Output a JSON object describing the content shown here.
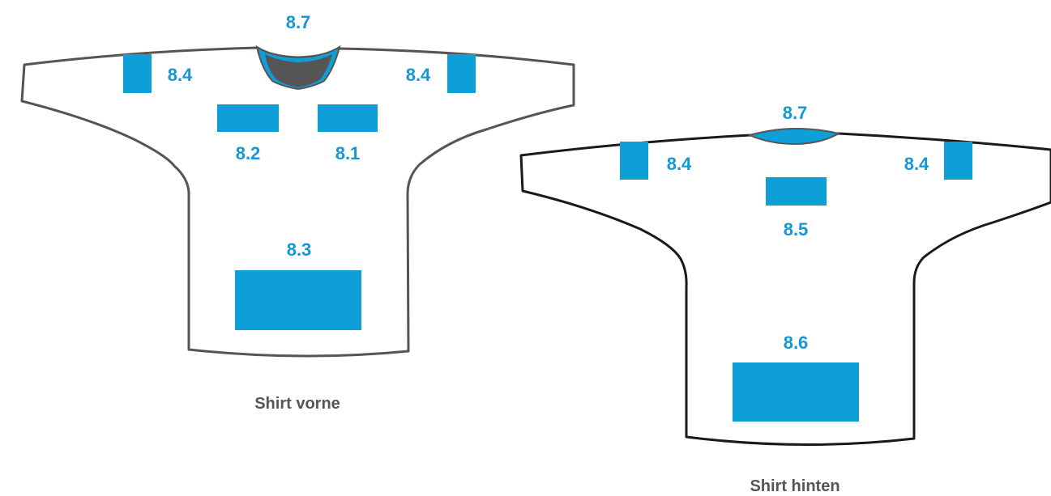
{
  "colors": {
    "zone_fill": "#0f9fd8",
    "label_text": "#1597d3",
    "outline_front": "#555555",
    "outline_back": "#1a1a1a",
    "collar_inner": "#555555",
    "caption_text": "#555555"
  },
  "front": {
    "caption": "Shirt vorne",
    "zones": {
      "collar": "8.7",
      "shoulder_left": "8.4",
      "shoulder_right": "8.4",
      "chest_left": "8.2",
      "chest_right": "8.1",
      "belly": "8.3"
    }
  },
  "back": {
    "caption": "Shirt hinten",
    "zones": {
      "collar": "8.7",
      "shoulder_left": "8.4",
      "shoulder_right": "8.4",
      "upper_back": "8.5",
      "lower_back": "8.6"
    }
  }
}
